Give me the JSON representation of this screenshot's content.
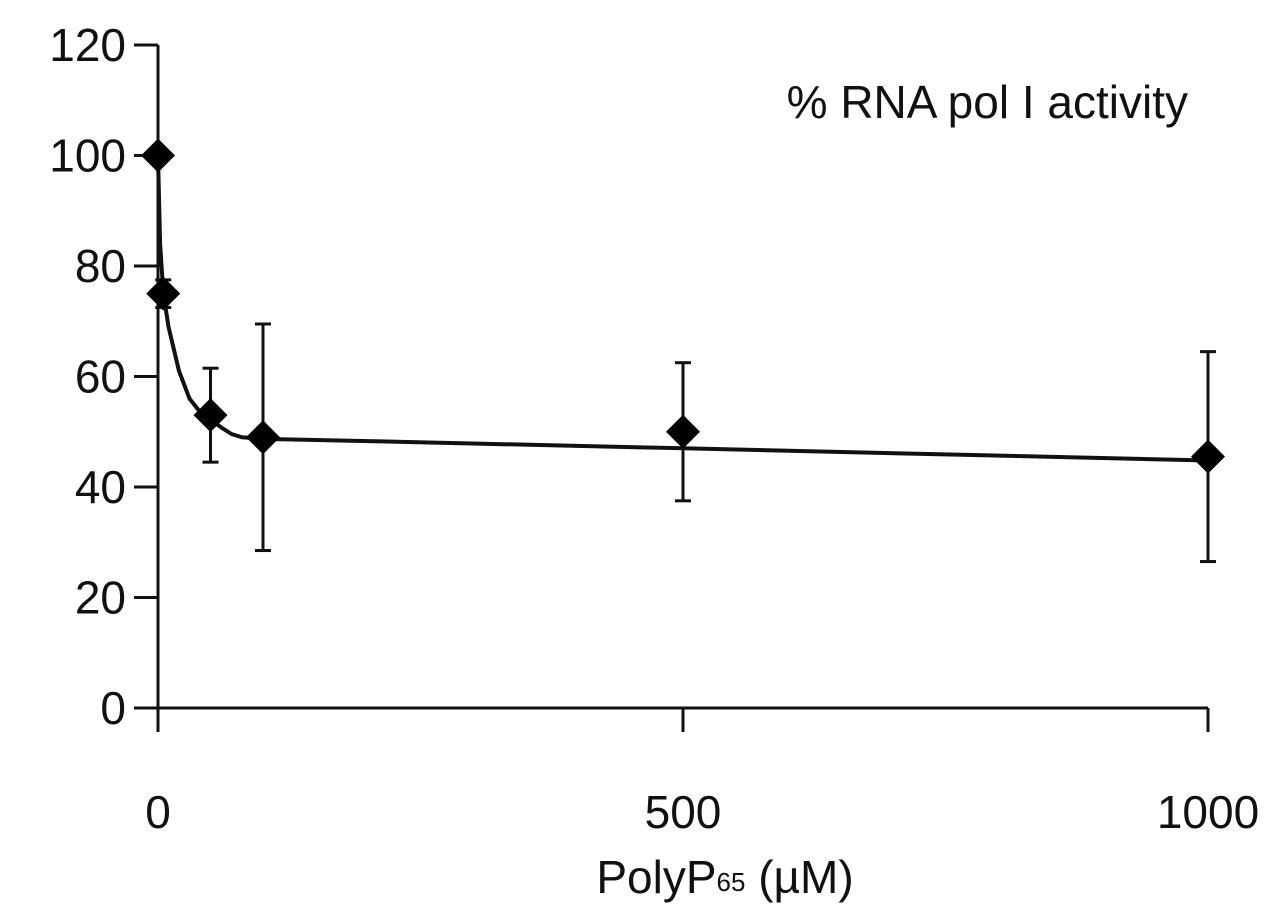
{
  "chart_data": {
    "type": "scatter",
    "title": "",
    "annotation": "% RNA pol I activity",
    "xlabel": {
      "prefix": "PolyP",
      "subscript": "65",
      "suffix": " (µM)"
    },
    "ylabel": "",
    "xlim": [
      0,
      1000
    ],
    "ylim": [
      0,
      120
    ],
    "x_ticks": [
      0,
      500,
      1000
    ],
    "y_ticks": [
      0,
      20,
      40,
      60,
      80,
      100,
      120
    ],
    "x_tick_labels": [
      "0",
      "500",
      "1000"
    ],
    "y_tick_labels": [
      "0",
      "20",
      "40",
      "60",
      "80",
      "100",
      "120"
    ],
    "grid": false,
    "legend": "none",
    "marker": "diamond",
    "series": [
      {
        "x": [
          0,
          5,
          50,
          100,
          500,
          1000
        ],
        "y": [
          100,
          75,
          53,
          49,
          50,
          45.5
        ],
        "error": [
          null,
          2.5,
          8.5,
          20.5,
          12.5,
          19
        ]
      }
    ],
    "trend_line": {
      "x": [
        0,
        2,
        5,
        10,
        20,
        30,
        40,
        50,
        60,
        70,
        80,
        100,
        200,
        500,
        1000
      ],
      "y": [
        100,
        84,
        75.2,
        69,
        61,
        56,
        53.6,
        52.2,
        50.8,
        49.6,
        49,
        48.7,
        48.3,
        47,
        44.8
      ]
    }
  }
}
